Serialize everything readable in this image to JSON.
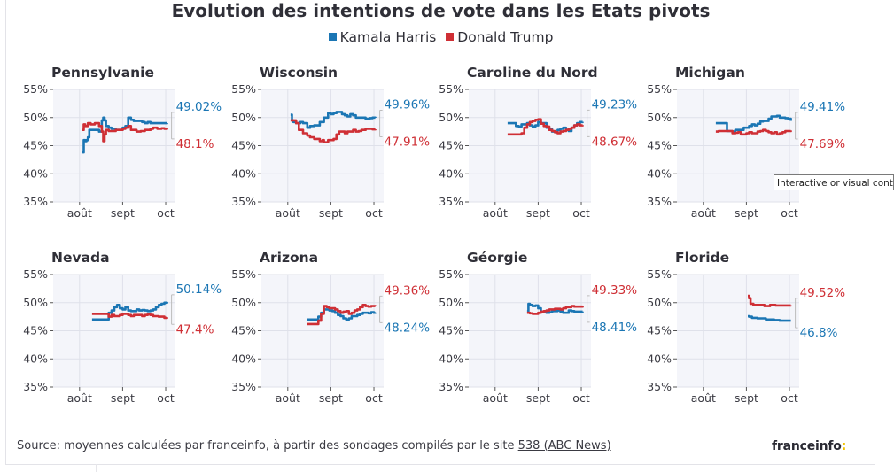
{
  "title": "Evolution des intentions de vote dans les Etats pivots",
  "legend": [
    {
      "label": "Kamala Harris",
      "color": "#1b76b4"
    },
    {
      "label": "Donald Trump",
      "color": "#cf2f35"
    }
  ],
  "colors": {
    "harris": "#1b76b4",
    "trump": "#cf2f35",
    "plot_bg": "#f4f5fa",
    "grid": "#dfe1ea"
  },
  "source": {
    "prefix": "Source: moyennes calculées par franceinfo, à partir des sondages compilés par le site ",
    "link": "538 (ABC News)"
  },
  "logo": {
    "text": "franceinfo",
    "suffix": ":"
  },
  "tooltip": "Interactive or visual content",
  "chart_data": [
    {
      "type": "line",
      "title": "Pennsylvanie",
      "ylim": [
        35,
        55
      ],
      "yticks": [
        "55%",
        "50%",
        "45%",
        "40%",
        "35%"
      ],
      "xticks": [
        "août",
        "sept",
        "oct"
      ],
      "series": [
        {
          "name": "Kamala Harris",
          "end_label": "49.02%",
          "x": [
            21,
            22,
            23,
            24,
            25,
            26,
            28,
            30,
            33,
            35,
            36,
            37,
            38,
            40,
            42,
            45,
            48,
            50,
            52,
            54,
            56,
            58,
            60,
            62,
            64,
            66,
            68,
            70,
            72,
            75,
            78,
            80,
            82
          ],
          "y": [
            43.8,
            46,
            45.8,
            46,
            46.5,
            47.8,
            47.8,
            47.8,
            47.5,
            49.5,
            50,
            49.5,
            48.5,
            48.2,
            48,
            47.8,
            47.8,
            48.2,
            48.5,
            50,
            49.6,
            49.4,
            49.4,
            49.4,
            49.2,
            49,
            49.2,
            49,
            49,
            49,
            49,
            49,
            49.02
          ]
        },
        {
          "name": "Donald Trump",
          "end_label": "48.1%",
          "x": [
            21,
            22,
            23,
            25,
            27,
            30,
            33,
            35,
            36,
            37,
            38,
            40,
            45,
            48,
            50,
            52,
            54,
            56,
            60,
            63,
            66,
            70,
            72,
            75,
            78,
            80,
            82
          ],
          "y": [
            47.8,
            48.8,
            48.5,
            49,
            48.8,
            49,
            48.5,
            47.5,
            45.8,
            47,
            47.8,
            47.6,
            47.8,
            47.8,
            48,
            48.2,
            48.5,
            47.8,
            47.5,
            47.6,
            47.8,
            48,
            48.2,
            48,
            48.1,
            48,
            48.1
          ]
        }
      ]
    },
    {
      "type": "line",
      "title": "Wisconsin",
      "ylim": [
        35,
        55
      ],
      "yticks": [
        "55%",
        "50%",
        "45%",
        "40%",
        "35%"
      ],
      "xticks": [
        "août",
        "sept",
        "oct"
      ],
      "series": [
        {
          "name": "Kamala Harris",
          "end_label": "49.96%",
          "x": [
            21,
            22,
            23,
            25,
            28,
            30,
            33,
            35,
            38,
            42,
            45,
            48,
            50,
            52,
            54,
            56,
            58,
            60,
            62,
            64,
            66,
            68,
            70,
            72,
            75,
            78,
            80,
            82
          ],
          "y": [
            50.5,
            49.5,
            49.2,
            49,
            49.2,
            49,
            48.2,
            48.5,
            48.6,
            49.2,
            50,
            50.8,
            50.6,
            50.8,
            51,
            51,
            50.6,
            50.4,
            50.2,
            50.6,
            50.4,
            50,
            50,
            50,
            49.8,
            49.9,
            50,
            49.96
          ]
        },
        {
          "name": "Donald Trump",
          "end_label": "47.91%",
          "x": [
            21,
            23,
            25,
            27,
            30,
            33,
            35,
            38,
            40,
            42,
            44,
            45,
            48,
            50,
            52,
            54,
            56,
            58,
            60,
            62,
            64,
            66,
            68,
            70,
            72,
            75,
            78,
            80,
            82
          ],
          "y": [
            49.5,
            49.5,
            49,
            47.8,
            47.2,
            46.8,
            46.5,
            46.2,
            46.2,
            45.8,
            46,
            45.6,
            46,
            46,
            46.2,
            47,
            47.5,
            47.5,
            47.2,
            47.5,
            47.5,
            47.8,
            47.5,
            47.6,
            47.8,
            48,
            48,
            47.9,
            47.91
          ]
        }
      ]
    },
    {
      "type": "line",
      "title": "Caroline du Nord",
      "ylim": [
        35,
        55
      ],
      "yticks": [
        "55%",
        "50%",
        "45%",
        "40%",
        "35%"
      ],
      "xticks": [
        "août",
        "sept",
        "oct"
      ],
      "series": [
        {
          "name": "Kamala Harris",
          "end_label": "49.23%",
          "x": [
            28,
            30,
            32,
            34,
            36,
            38,
            40,
            42,
            44,
            46,
            48,
            50,
            52,
            54,
            56,
            58,
            60,
            62,
            64,
            66,
            68,
            70,
            72,
            74,
            76,
            78,
            80,
            82
          ],
          "y": [
            49,
            49,
            49,
            48.5,
            48.4,
            48.8,
            48.8,
            49,
            48.6,
            48.4,
            48.6,
            49.2,
            49,
            49,
            48.2,
            47.9,
            47.5,
            47.4,
            47.8,
            48,
            48.2,
            47.8,
            47.6,
            48.2,
            48.6,
            49,
            49.2,
            49.23
          ]
        },
        {
          "name": "Donald Trump",
          "end_label": "48.67%",
          "x": [
            28,
            30,
            32,
            34,
            36,
            38,
            40,
            42,
            44,
            46,
            48,
            50,
            52,
            54,
            56,
            58,
            60,
            62,
            64,
            66,
            68,
            70,
            72,
            74,
            76,
            78,
            80,
            82
          ],
          "y": [
            47,
            47,
            47,
            47,
            47,
            47.2,
            48.2,
            48.8,
            49.2,
            49.4,
            49.6,
            49.7,
            48.9,
            48.5,
            48.4,
            47.8,
            47.6,
            47.4,
            47.2,
            47.5,
            47.6,
            47.8,
            48,
            48.2,
            48.6,
            48.8,
            48.6,
            48.67
          ]
        }
      ]
    },
    {
      "type": "line",
      "title": "Michigan",
      "ylim": [
        35,
        55
      ],
      "yticks": [
        "55%",
        "50%",
        "45%",
        "40%",
        "35%"
      ],
      "xticks": [
        "août",
        "sept",
        "oct"
      ],
      "series": [
        {
          "name": "Kamala Harris",
          "end_label": "49.41%",
          "x": [
            28,
            30,
            33,
            35,
            36,
            38,
            40,
            42,
            44,
            46,
            48,
            50,
            52,
            54,
            56,
            58,
            60,
            62,
            64,
            66,
            68,
            70,
            72,
            74,
            76,
            78,
            80,
            82
          ],
          "y": [
            49,
            49,
            49,
            49,
            47.6,
            47.6,
            47.5,
            47.8,
            47.8,
            47.8,
            48.2,
            48.2,
            48.5,
            48.8,
            48.6,
            48.9,
            49.3,
            49.4,
            49.4,
            49.8,
            50.2,
            50.2,
            50.3,
            50,
            50,
            49.9,
            49.8,
            49.41
          ]
        },
        {
          "name": "Donald Trump",
          "end_label": "47.69%",
          "x": [
            28,
            30,
            33,
            35,
            38,
            40,
            42,
            44,
            46,
            48,
            50,
            52,
            54,
            56,
            58,
            60,
            62,
            64,
            66,
            68,
            70,
            72,
            74,
            76,
            78,
            80,
            82
          ],
          "y": [
            47.5,
            47.6,
            47.6,
            47.6,
            47.6,
            47.2,
            47.3,
            47.4,
            47,
            47,
            47.2,
            47.4,
            47.2,
            47.2,
            47.5,
            47.6,
            47.8,
            47.6,
            47.4,
            47.2,
            47.4,
            47,
            47.2,
            47.4,
            47.6,
            47.6,
            47.69
          ]
        }
      ]
    },
    {
      "type": "line",
      "title": "Nevada",
      "ylim": [
        35,
        55
      ],
      "yticks": [
        "55%",
        "50%",
        "45%",
        "40%",
        "35%"
      ],
      "xticks": [
        "août",
        "sept",
        "oct"
      ],
      "series": [
        {
          "name": "Kamala Harris",
          "end_label": "50.14%",
          "x": [
            28,
            30,
            33,
            36,
            38,
            40,
            42,
            44,
            46,
            48,
            50,
            52,
            54,
            56,
            58,
            60,
            62,
            64,
            66,
            68,
            70,
            72,
            74,
            76,
            78,
            80,
            82
          ],
          "y": [
            47,
            47,
            47,
            47,
            47,
            48.2,
            48.6,
            49.2,
            49.6,
            49,
            48.8,
            49.2,
            48.6,
            48.5,
            48.5,
            48.8,
            48.6,
            48.7,
            48.6,
            48.5,
            48.6,
            48.8,
            49.2,
            49.6,
            49.8,
            50,
            50.14
          ]
        },
        {
          "name": "Donald Trump",
          "end_label": "47.4%",
          "x": [
            28,
            30,
            33,
            36,
            38,
            40,
            42,
            44,
            46,
            48,
            50,
            52,
            54,
            56,
            58,
            60,
            62,
            64,
            66,
            68,
            70,
            72,
            74,
            76,
            78,
            80,
            82
          ],
          "y": [
            48,
            48,
            48,
            48,
            48,
            47.5,
            47.8,
            47.6,
            47.6,
            47.8,
            48,
            48,
            47.8,
            47.6,
            47.8,
            47.8,
            47.8,
            47.6,
            47.8,
            47.9,
            47.8,
            47.6,
            47.6,
            47.5,
            47.5,
            47.3,
            47.4
          ]
        }
      ]
    },
    {
      "type": "line",
      "title": "Arizona",
      "ylim": [
        35,
        55
      ],
      "yticks": [
        "55%",
        "50%",
        "45%",
        "40%",
        "35%"
      ],
      "xticks": [
        "août",
        "sept",
        "oct"
      ],
      "series": [
        {
          "name": "Kamala Harris",
          "end_label": "48.24%",
          "x": [
            33,
            35,
            37,
            39,
            41,
            43,
            45,
            47,
            49,
            51,
            53,
            55,
            57,
            59,
            61,
            63,
            65,
            67,
            69,
            71,
            73,
            75,
            77,
            79,
            81,
            82
          ],
          "y": [
            47,
            47,
            47,
            47,
            47.5,
            48.2,
            48.8,
            48.8,
            48.6,
            48.5,
            48.2,
            47.8,
            47.6,
            47.2,
            47,
            47.2,
            47.6,
            47.6,
            47.8,
            48,
            48.2,
            48.2,
            48.1,
            48.3,
            48.2,
            48.24
          ]
        },
        {
          "name": "Donald Trump",
          "end_label": "49.36%",
          "x": [
            33,
            35,
            37,
            39,
            41,
            43,
            45,
            47,
            49,
            51,
            53,
            55,
            57,
            59,
            61,
            63,
            65,
            67,
            69,
            71,
            73,
            75,
            77,
            79,
            81,
            82
          ],
          "y": [
            46.2,
            46.2,
            46.2,
            46.2,
            46.8,
            48,
            49.4,
            49.2,
            49,
            49,
            48.8,
            48.5,
            48.2,
            48.4,
            48.5,
            48,
            48.2,
            48.6,
            48.8,
            49.2,
            49.6,
            49.4,
            49.3,
            49.4,
            49.4,
            49.36
          ]
        }
      ]
    },
    {
      "type": "line",
      "title": "Géorgie",
      "ylim": [
        35,
        55
      ],
      "yticks": [
        "55%",
        "50%",
        "45%",
        "40%",
        "35%"
      ],
      "xticks": [
        "août",
        "sept",
        "oct"
      ],
      "series": [
        {
          "name": "Kamala Harris",
          "end_label": "48.41%",
          "x": [
            42,
            43,
            44,
            46,
            48,
            50,
            52,
            54,
            56,
            58,
            60,
            62,
            64,
            66,
            68,
            70,
            72,
            74,
            76,
            78,
            80,
            82
          ],
          "y": [
            48.5,
            49.8,
            49.6,
            49.4,
            49.5,
            49,
            48.4,
            48.3,
            48.2,
            48.3,
            48.5,
            48.5,
            48.6,
            48.4,
            48.2,
            48.2,
            48.6,
            48.5,
            48.4,
            48.4,
            48.4,
            48.41
          ]
        },
        {
          "name": "Donald Trump",
          "end_label": "49.33%",
          "x": [
            42,
            44,
            46,
            48,
            50,
            52,
            54,
            56,
            58,
            60,
            62,
            64,
            66,
            68,
            70,
            72,
            74,
            76,
            78,
            80,
            82
          ],
          "y": [
            48.2,
            48.1,
            48,
            48,
            48.2,
            48.4,
            48.5,
            48.6,
            48.8,
            48.8,
            48.9,
            48.9,
            48.8,
            49,
            49.2,
            49.2,
            49.4,
            49.3,
            49.3,
            49.3,
            49.33
          ]
        }
      ]
    },
    {
      "type": "line",
      "title": "Floride",
      "ylim": [
        35,
        55
      ],
      "yticks": [
        "55%",
        "50%",
        "45%",
        "40%",
        "35%"
      ],
      "xticks": [
        "août",
        "sept",
        "oct"
      ],
      "series": [
        {
          "name": "Kamala Harris",
          "end_label": "46.8%",
          "x": [
            51,
            52,
            54,
            56,
            58,
            60,
            62,
            64,
            66,
            68,
            70,
            72,
            74,
            76,
            78,
            80,
            82
          ],
          "y": [
            47.6,
            47.5,
            47.3,
            47.3,
            47.2,
            47.2,
            47.2,
            47,
            47,
            47,
            46.9,
            46.9,
            46.8,
            46.8,
            46.8,
            46.8,
            46.8
          ]
        },
        {
          "name": "Donald Trump",
          "end_label": "49.52%",
          "x": [
            51,
            52,
            53,
            55,
            57,
            59,
            61,
            63,
            65,
            67,
            69,
            71,
            73,
            75,
            77,
            79,
            81,
            82
          ],
          "y": [
            51.2,
            50.8,
            49.8,
            49.6,
            49.6,
            49.6,
            49.6,
            49.4,
            49.4,
            49.6,
            49.6,
            49.5,
            49.5,
            49.5,
            49.5,
            49.5,
            49.5,
            49.52
          ]
        }
      ]
    }
  ]
}
